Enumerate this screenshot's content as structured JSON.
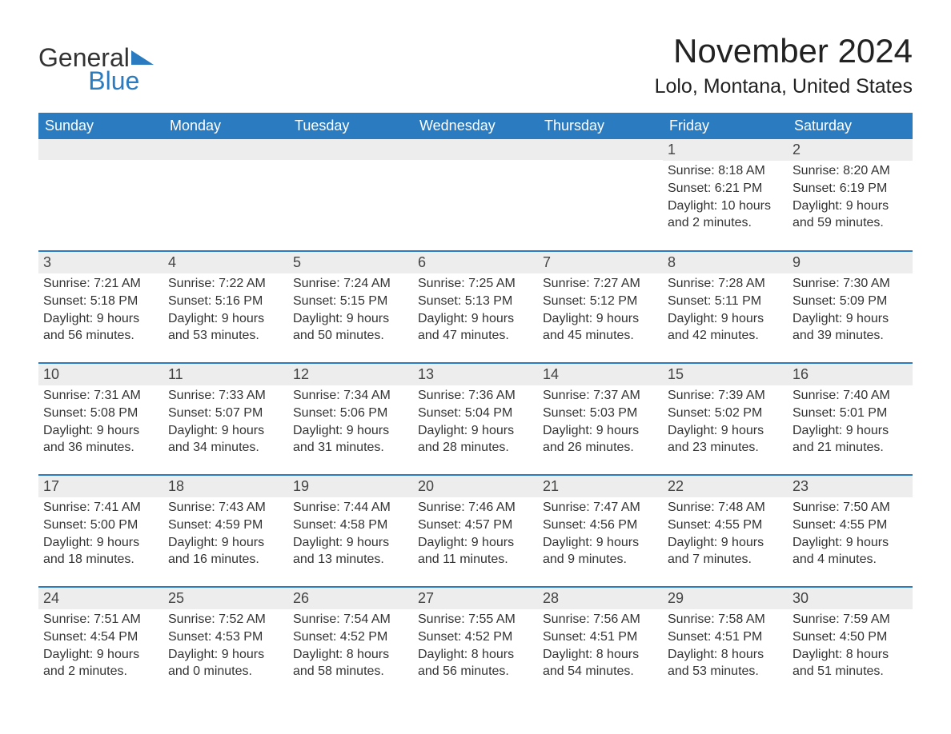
{
  "brand": {
    "text_general": "General",
    "text_blue": "Blue",
    "logo_fill": "#2a7bbf"
  },
  "colors": {
    "header_bg": "#2a7bbf",
    "header_text": "#ffffff",
    "daynum_bg": "#ededed",
    "row_border": "#2a7bbf",
    "body_text": "#333333",
    "page_bg": "#ffffff"
  },
  "title": "November 2024",
  "location": "Lolo, Montana, United States",
  "typography": {
    "title_fontsize": 42,
    "location_fontsize": 25,
    "header_fontsize": 18,
    "daynum_fontsize": 18,
    "body_fontsize": 16
  },
  "layout": {
    "columns": 7,
    "rows": 5,
    "leading_blanks": 5
  },
  "day_headers": [
    "Sunday",
    "Monday",
    "Tuesday",
    "Wednesday",
    "Thursday",
    "Friday",
    "Saturday"
  ],
  "days": [
    {
      "num": "1",
      "sunrise": "8:18 AM",
      "sunset": "6:21 PM",
      "daylight": "10 hours and 2 minutes."
    },
    {
      "num": "2",
      "sunrise": "8:20 AM",
      "sunset": "6:19 PM",
      "daylight": "9 hours and 59 minutes."
    },
    {
      "num": "3",
      "sunrise": "7:21 AM",
      "sunset": "5:18 PM",
      "daylight": "9 hours and 56 minutes."
    },
    {
      "num": "4",
      "sunrise": "7:22 AM",
      "sunset": "5:16 PM",
      "daylight": "9 hours and 53 minutes."
    },
    {
      "num": "5",
      "sunrise": "7:24 AM",
      "sunset": "5:15 PM",
      "daylight": "9 hours and 50 minutes."
    },
    {
      "num": "6",
      "sunrise": "7:25 AM",
      "sunset": "5:13 PM",
      "daylight": "9 hours and 47 minutes."
    },
    {
      "num": "7",
      "sunrise": "7:27 AM",
      "sunset": "5:12 PM",
      "daylight": "9 hours and 45 minutes."
    },
    {
      "num": "8",
      "sunrise": "7:28 AM",
      "sunset": "5:11 PM",
      "daylight": "9 hours and 42 minutes."
    },
    {
      "num": "9",
      "sunrise": "7:30 AM",
      "sunset": "5:09 PM",
      "daylight": "9 hours and 39 minutes."
    },
    {
      "num": "10",
      "sunrise": "7:31 AM",
      "sunset": "5:08 PM",
      "daylight": "9 hours and 36 minutes."
    },
    {
      "num": "11",
      "sunrise": "7:33 AM",
      "sunset": "5:07 PM",
      "daylight": "9 hours and 34 minutes."
    },
    {
      "num": "12",
      "sunrise": "7:34 AM",
      "sunset": "5:06 PM",
      "daylight": "9 hours and 31 minutes."
    },
    {
      "num": "13",
      "sunrise": "7:36 AM",
      "sunset": "5:04 PM",
      "daylight": "9 hours and 28 minutes."
    },
    {
      "num": "14",
      "sunrise": "7:37 AM",
      "sunset": "5:03 PM",
      "daylight": "9 hours and 26 minutes."
    },
    {
      "num": "15",
      "sunrise": "7:39 AM",
      "sunset": "5:02 PM",
      "daylight": "9 hours and 23 minutes."
    },
    {
      "num": "16",
      "sunrise": "7:40 AM",
      "sunset": "5:01 PM",
      "daylight": "9 hours and 21 minutes."
    },
    {
      "num": "17",
      "sunrise": "7:41 AM",
      "sunset": "5:00 PM",
      "daylight": "9 hours and 18 minutes."
    },
    {
      "num": "18",
      "sunrise": "7:43 AM",
      "sunset": "4:59 PM",
      "daylight": "9 hours and 16 minutes."
    },
    {
      "num": "19",
      "sunrise": "7:44 AM",
      "sunset": "4:58 PM",
      "daylight": "9 hours and 13 minutes."
    },
    {
      "num": "20",
      "sunrise": "7:46 AM",
      "sunset": "4:57 PM",
      "daylight": "9 hours and 11 minutes."
    },
    {
      "num": "21",
      "sunrise": "7:47 AM",
      "sunset": "4:56 PM",
      "daylight": "9 hours and 9 minutes."
    },
    {
      "num": "22",
      "sunrise": "7:48 AM",
      "sunset": "4:55 PM",
      "daylight": "9 hours and 7 minutes."
    },
    {
      "num": "23",
      "sunrise": "7:50 AM",
      "sunset": "4:55 PM",
      "daylight": "9 hours and 4 minutes."
    },
    {
      "num": "24",
      "sunrise": "7:51 AM",
      "sunset": "4:54 PM",
      "daylight": "9 hours and 2 minutes."
    },
    {
      "num": "25",
      "sunrise": "7:52 AM",
      "sunset": "4:53 PM",
      "daylight": "9 hours and 0 minutes."
    },
    {
      "num": "26",
      "sunrise": "7:54 AM",
      "sunset": "4:52 PM",
      "daylight": "8 hours and 58 minutes."
    },
    {
      "num": "27",
      "sunrise": "7:55 AM",
      "sunset": "4:52 PM",
      "daylight": "8 hours and 56 minutes."
    },
    {
      "num": "28",
      "sunrise": "7:56 AM",
      "sunset": "4:51 PM",
      "daylight": "8 hours and 54 minutes."
    },
    {
      "num": "29",
      "sunrise": "7:58 AM",
      "sunset": "4:51 PM",
      "daylight": "8 hours and 53 minutes."
    },
    {
      "num": "30",
      "sunrise": "7:59 AM",
      "sunset": "4:50 PM",
      "daylight": "8 hours and 51 minutes."
    }
  ],
  "labels": {
    "sunrise_prefix": "Sunrise: ",
    "sunset_prefix": "Sunset: ",
    "daylight_prefix": "Daylight: "
  }
}
